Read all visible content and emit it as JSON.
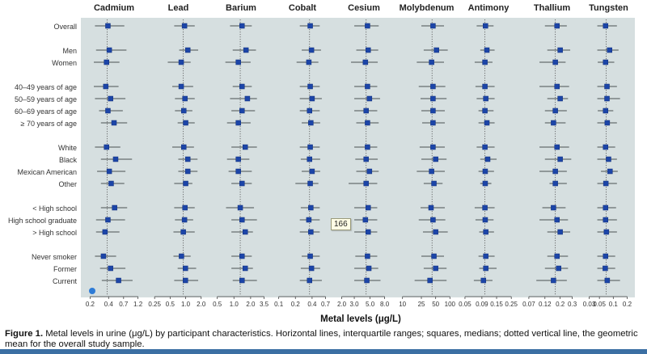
{
  "chart_data": {
    "type": "forest",
    "xlabel": "Metal levels (μg/L)",
    "scale": "log",
    "categories": [
      "Overall",
      "Men",
      "Women",
      "40–49 years of age",
      "50–59 years of age",
      "60–69 years of age",
      "≥ 70 years of age",
      "White",
      "Black",
      "Mexican American",
      "Other",
      "< High school",
      "High school graduate",
      "> High school",
      "Never smoker",
      "Former",
      "Current"
    ],
    "groups": [
      [
        0
      ],
      [
        1,
        2
      ],
      [
        3,
        4,
        5,
        6
      ],
      [
        7,
        8,
        9,
        10
      ],
      [
        11,
        12,
        13
      ],
      [
        14,
        15,
        16
      ]
    ],
    "panels": [
      {
        "name": "Cadmium",
        "ticks": [
          "0.2",
          "0.4",
          "0.7",
          "1.2"
        ],
        "tick_values": [
          0.2,
          0.4,
          0.7,
          1.2
        ],
        "xlim": [
          0.16,
          1.5
        ],
        "geo_mean": 0.38,
        "median": [
          0.39,
          0.41,
          0.37,
          0.36,
          0.43,
          0.39,
          0.49,
          0.37,
          0.52,
          0.41,
          0.44,
          0.5,
          0.39,
          0.35,
          0.33,
          0.43,
          0.58
        ],
        "q1": [
          0.24,
          0.25,
          0.23,
          0.23,
          0.24,
          0.28,
          0.3,
          0.24,
          0.3,
          0.26,
          0.3,
          0.3,
          0.25,
          0.25,
          0.24,
          0.29,
          0.31
        ],
        "q3": [
          0.72,
          0.78,
          0.6,
          0.58,
          0.75,
          0.68,
          0.8,
          0.62,
          0.96,
          0.75,
          0.72,
          0.8,
          0.74,
          0.6,
          0.53,
          0.75,
          0.98
        ]
      },
      {
        "name": "Lead",
        "ticks": [
          "0.25",
          "0.5",
          "1.0",
          "2.0"
        ],
        "tick_values": [
          0.25,
          0.5,
          1.0,
          2.0
        ],
        "xlim": [
          0.2,
          2.6
        ],
        "geo_mean": 0.9,
        "median": [
          0.95,
          1.1,
          0.82,
          0.82,
          0.97,
          0.92,
          1.0,
          0.92,
          1.1,
          1.1,
          1.0,
          0.97,
          0.95,
          0.9,
          0.83,
          0.99,
          0.99
        ],
        "q1": [
          0.6,
          0.75,
          0.45,
          0.55,
          0.62,
          0.62,
          0.7,
          0.55,
          0.72,
          0.72,
          0.6,
          0.6,
          0.62,
          0.58,
          0.58,
          0.7,
          0.6
        ],
        "q3": [
          1.5,
          1.75,
          1.25,
          1.4,
          1.5,
          1.35,
          1.5,
          1.45,
          1.7,
          1.7,
          1.35,
          1.5,
          1.4,
          1.5,
          1.25,
          1.6,
          1.75
        ]
      },
      {
        "name": "Barium",
        "ticks": [
          "0.5",
          "1.0",
          "2.0",
          "3.5"
        ],
        "tick_values": [
          0.5,
          1.0,
          2.0,
          3.5
        ],
        "xlim": [
          0.4,
          4.5
        ],
        "geo_mean": 1.3,
        "median": [
          1.4,
          1.65,
          1.2,
          1.4,
          1.75,
          1.4,
          1.2,
          1.6,
          1.2,
          1.2,
          1.4,
          1.3,
          1.4,
          1.6,
          1.4,
          1.6,
          1.4
        ],
        "q1": [
          0.85,
          0.95,
          0.7,
          0.95,
          0.85,
          0.9,
          0.75,
          0.9,
          0.75,
          0.8,
          0.9,
          0.72,
          0.9,
          0.9,
          0.9,
          0.9,
          0.95
        ],
        "q3": [
          2.1,
          2.5,
          2.0,
          2.1,
          2.6,
          2.4,
          2.0,
          2.6,
          1.9,
          2.1,
          2.1,
          2.3,
          2.6,
          2.2,
          2.1,
          2.2,
          2.6
        ]
      },
      {
        "name": "Cobalt",
        "ticks": [
          "0.1",
          "0.2",
          "0.4",
          "0.7"
        ],
        "tick_values": [
          0.1,
          0.2,
          0.4,
          0.7
        ],
        "xlim": [
          0.08,
          0.9
        ],
        "geo_mean": 0.36,
        "median": [
          0.37,
          0.39,
          0.35,
          0.37,
          0.4,
          0.36,
          0.38,
          0.37,
          0.36,
          0.4,
          0.37,
          0.38,
          0.35,
          0.38,
          0.37,
          0.39,
          0.36
        ],
        "q1": [
          0.24,
          0.26,
          0.21,
          0.24,
          0.24,
          0.24,
          0.26,
          0.24,
          0.25,
          0.26,
          0.2,
          0.25,
          0.24,
          0.24,
          0.26,
          0.25,
          0.24
        ],
        "q3": [
          0.55,
          0.58,
          0.52,
          0.55,
          0.6,
          0.55,
          0.56,
          0.55,
          0.56,
          0.56,
          0.52,
          0.55,
          0.55,
          0.55,
          0.55,
          0.56,
          0.6
        ]
      },
      {
        "name": "Cesium",
        "ticks": [
          "2.0",
          "3.0",
          "5.0",
          "8.0"
        ],
        "tick_values": [
          2.0,
          3.0,
          5.0,
          8.0
        ],
        "xlim": [
          1.6,
          10.5
        ],
        "geo_mean": 4.4,
        "median": [
          4.6,
          4.7,
          4.3,
          4.6,
          4.9,
          4.4,
          4.6,
          4.6,
          4.4,
          4.9,
          4.4,
          4.7,
          4.3,
          4.7,
          4.6,
          4.8,
          4.5
        ],
        "q1": [
          3.0,
          3.2,
          2.7,
          3.0,
          3.0,
          3.0,
          3.2,
          3.0,
          3.1,
          3.2,
          2.5,
          3.0,
          3.0,
          3.0,
          3.1,
          3.0,
          3.0
        ],
        "q3": [
          6.6,
          6.5,
          6.4,
          6.3,
          6.9,
          6.3,
          6.6,
          6.3,
          6.4,
          6.6,
          6.3,
          6.3,
          6.3,
          6.3,
          6.3,
          6.5,
          7.0
        ]
      },
      {
        "name": "Molybdenum",
        "ticks": [
          "10",
          "25",
          "50",
          "100"
        ],
        "tick_values": [
          10,
          25,
          50,
          100
        ],
        "xlim": [
          8,
          130
        ],
        "geo_mean": 42,
        "median": [
          44,
          52,
          41,
          44,
          44,
          44,
          44,
          44,
          50,
          41,
          46,
          40,
          44,
          50,
          46,
          50,
          38
        ],
        "q1": [
          25,
          28,
          20,
          22,
          24,
          25,
          26,
          23,
          25,
          20,
          28,
          24,
          22,
          27,
          25,
          28,
          18
        ],
        "q3": [
          75,
          90,
          75,
          80,
          85,
          78,
          78,
          78,
          85,
          78,
          70,
          78,
          80,
          90,
          75,
          85,
          85
        ]
      },
      {
        "name": "Antimony",
        "ticks": [
          "0.05",
          "0.09",
          "0.15",
          "0.25"
        ],
        "tick_values": [
          0.05,
          0.09,
          0.15,
          0.25
        ],
        "xlim": [
          0.04,
          0.32
        ],
        "geo_mean": 0.1,
        "median": [
          0.102,
          0.107,
          0.1,
          0.1,
          0.103,
          0.1,
          0.107,
          0.1,
          0.11,
          0.101,
          0.101,
          0.1,
          0.101,
          0.103,
          0.103,
          0.103,
          0.095
        ],
        "q1": [
          0.075,
          0.085,
          0.07,
          0.072,
          0.075,
          0.08,
          0.08,
          0.075,
          0.085,
          0.08,
          0.085,
          0.07,
          0.072,
          0.082,
          0.08,
          0.082,
          0.068
        ],
        "q3": [
          0.135,
          0.14,
          0.13,
          0.14,
          0.14,
          0.135,
          0.14,
          0.14,
          0.15,
          0.137,
          0.125,
          0.14,
          0.135,
          0.137,
          0.14,
          0.15,
          0.13
        ]
      },
      {
        "name": "Thallium",
        "ticks": [
          "0.07",
          "0.12",
          "0.2",
          "0.3"
        ],
        "tick_values": [
          0.07,
          0.12,
          0.2,
          0.3
        ],
        "xlim": [
          0.055,
          0.42
        ],
        "geo_mean": 0.17,
        "median": [
          0.18,
          0.2,
          0.17,
          0.18,
          0.2,
          0.17,
          0.16,
          0.18,
          0.2,
          0.17,
          0.17,
          0.16,
          0.18,
          0.2,
          0.18,
          0.19,
          0.16
        ],
        "q1": [
          0.12,
          0.13,
          0.1,
          0.1,
          0.13,
          0.12,
          0.12,
          0.1,
          0.12,
          0.1,
          0.14,
          0.11,
          0.1,
          0.13,
          0.13,
          0.12,
          0.09
        ],
        "q3": [
          0.25,
          0.28,
          0.24,
          0.27,
          0.26,
          0.25,
          0.24,
          0.27,
          0.29,
          0.25,
          0.25,
          0.24,
          0.26,
          0.28,
          0.26,
          0.26,
          0.25
        ]
      },
      {
        "name": "Tungsten",
        "ticks": [
          "0.03",
          "0.05",
          "0.1",
          "0.2"
        ],
        "tick_values": [
          0.03,
          0.05,
          0.1,
          0.2
        ],
        "xlim": [
          0.025,
          0.25
        ],
        "geo_mean": 0.07,
        "median": [
          0.068,
          0.083,
          0.068,
          0.073,
          0.073,
          0.068,
          0.074,
          0.068,
          0.079,
          0.085,
          0.069,
          0.068,
          0.068,
          0.071,
          0.068,
          0.067,
          0.074
        ],
        "q1": [
          0.045,
          0.045,
          0.046,
          0.045,
          0.045,
          0.046,
          0.045,
          0.045,
          0.045,
          0.054,
          0.045,
          0.045,
          0.045,
          0.045,
          0.045,
          0.045,
          0.045
        ],
        "q3": [
          0.12,
          0.13,
          0.105,
          0.12,
          0.14,
          0.1,
          0.12,
          0.11,
          0.12,
          0.125,
          0.12,
          0.115,
          0.12,
          0.12,
          0.11,
          0.11,
          0.14
        ]
      }
    ]
  },
  "caption": {
    "label": "Figure 1.",
    "text": " Metal levels in urine (μg/L) by participant characteristics. Horizontal lines, interquartile ranges; squares, medians; dotted vertical line, the geometric mean for the overall study sample."
  },
  "tooltip": {
    "text": "166"
  },
  "colors": {
    "panel_bg": "#d6dfe0",
    "marker": "#1c45a8",
    "whisker": "#4a5052",
    "accent": "#2e7bd6"
  }
}
